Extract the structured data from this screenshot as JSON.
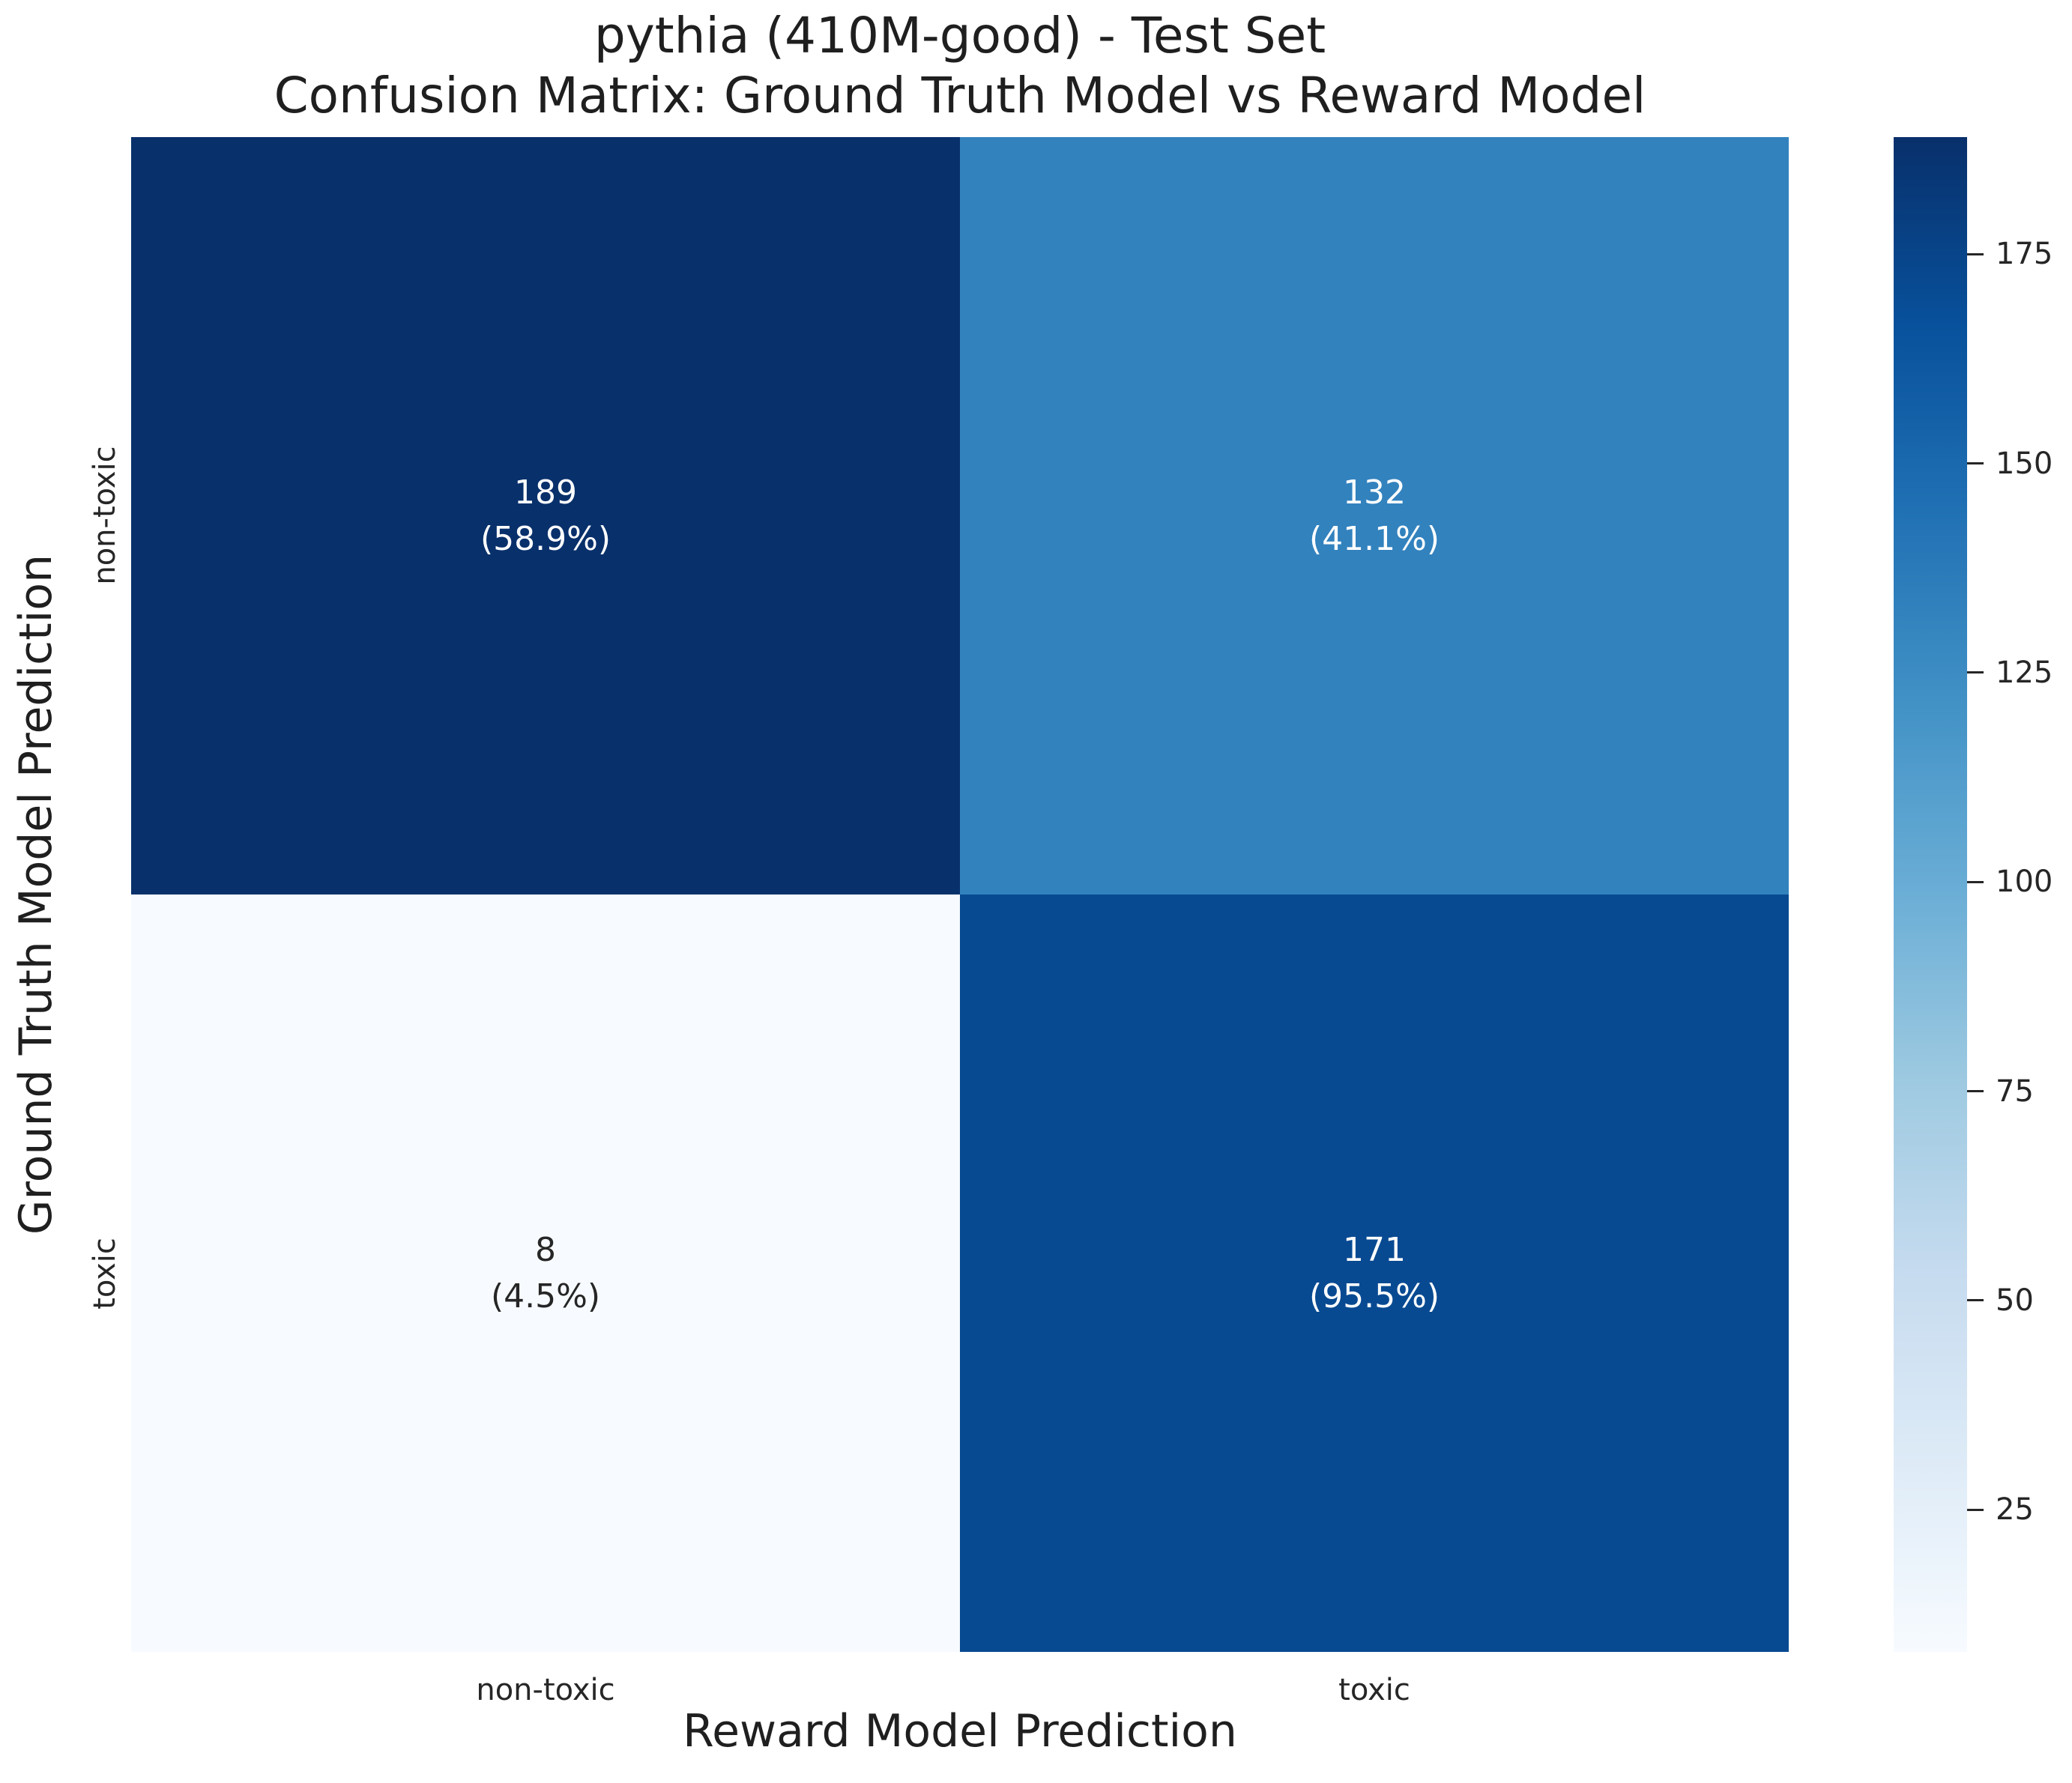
{
  "figure": {
    "title_line1": "pythia (410M-good) - Test Set",
    "title_line2": "Confusion Matrix: Ground Truth Model vs Reward Model",
    "background": "#ffffff",
    "text_color": "#1f1f1f"
  },
  "chart_data": {
    "type": "heatmap",
    "title": "pythia (410M-good) - Test Set\nConfusion Matrix: Ground Truth Model vs Reward Model",
    "xlabel": "Reward Model Prediction",
    "ylabel": "Ground Truth Model Prediction",
    "x_categories": [
      "non-toxic",
      "toxic"
    ],
    "y_categories": [
      "non-toxic",
      "toxic"
    ],
    "values": [
      [
        189,
        132
      ],
      [
        8,
        171
      ]
    ],
    "row_percents": [
      [
        "58.9%",
        "41.1%"
      ],
      [
        "4.5%",
        "95.5%"
      ]
    ],
    "cells": [
      {
        "row": 0,
        "col": 0,
        "value": "189",
        "percent": "(58.9%)",
        "bg": "#08306b",
        "fg": "#ffffff"
      },
      {
        "row": 0,
        "col": 1,
        "value": "132",
        "percent": "(41.1%)",
        "bg": "#3282be",
        "fg": "#ffffff"
      },
      {
        "row": 1,
        "col": 0,
        "value": "8",
        "percent": "(4.5%)",
        "bg": "#f7fbff",
        "fg": "#262626"
      },
      {
        "row": 1,
        "col": 1,
        "value": "171",
        "percent": "(95.5%)",
        "bg": "#084a92",
        "fg": "#ffffff"
      }
    ],
    "colormap": "Blues",
    "grid": false,
    "legend_position": "right-colorbar",
    "colorbar": {
      "vmin": 8,
      "vmax": 189,
      "ticks": [
        175,
        150,
        125,
        100,
        75,
        50,
        25
      ],
      "gradient": [
        {
          "pos": 0.0,
          "color": "#f7fbff"
        },
        {
          "pos": 0.125,
          "color": "#deebf7"
        },
        {
          "pos": 0.25,
          "color": "#c6dbef"
        },
        {
          "pos": 0.375,
          "color": "#9ecae1"
        },
        {
          "pos": 0.5,
          "color": "#6baed6"
        },
        {
          "pos": 0.625,
          "color": "#4292c6"
        },
        {
          "pos": 0.75,
          "color": "#2171b5"
        },
        {
          "pos": 0.875,
          "color": "#08519c"
        },
        {
          "pos": 1.0,
          "color": "#08306b"
        }
      ]
    }
  }
}
